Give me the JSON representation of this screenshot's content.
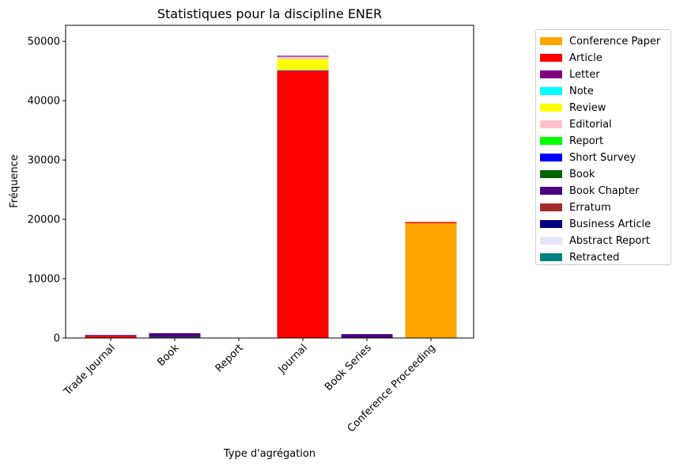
{
  "chart_data": {
    "type": "bar",
    "stacked": true,
    "title": "Statistiques pour la discipline ENER",
    "xlabel": "Type d'agrégation",
    "ylabel": "Fréquence",
    "categories": [
      "Trade Journal",
      "Book",
      "Report",
      "Journal",
      "Book Series",
      "Conference Proceeding"
    ],
    "ylim": [
      0,
      52700
    ],
    "yticks": [
      0,
      10000,
      20000,
      30000,
      40000,
      50000
    ],
    "grid": false,
    "legend_position": "outside-right",
    "series": [
      {
        "name": "Conference Paper",
        "color": "#ffa500",
        "values": [
          0,
          0,
          0,
          50,
          0,
          19350
        ]
      },
      {
        "name": "Article",
        "color": "#ff0000",
        "values": [
          350,
          0,
          0,
          45000,
          0,
          200
        ]
      },
      {
        "name": "Letter",
        "color": "#800080",
        "values": [
          0,
          0,
          0,
          100,
          0,
          0
        ]
      },
      {
        "name": "Note",
        "color": "#00ffff",
        "values": [
          0,
          0,
          0,
          50,
          0,
          0
        ]
      },
      {
        "name": "Review",
        "color": "#ffff00",
        "values": [
          0,
          0,
          0,
          1800,
          0,
          0
        ]
      },
      {
        "name": "Editorial",
        "color": "#ffc0cb",
        "values": [
          0,
          0,
          0,
          500,
          0,
          0
        ]
      },
      {
        "name": "Report",
        "color": "#00ff00",
        "values": [
          0,
          0,
          0,
          0,
          0,
          0
        ]
      },
      {
        "name": "Short Survey",
        "color": "#0000ff",
        "values": [
          0,
          0,
          0,
          0,
          0,
          0
        ]
      },
      {
        "name": "Book",
        "color": "#006400",
        "values": [
          0,
          150,
          0,
          0,
          0,
          0
        ]
      },
      {
        "name": "Book Chapter",
        "color": "#4b0082",
        "values": [
          150,
          650,
          0,
          0,
          650,
          0
        ]
      },
      {
        "name": "Erratum",
        "color": "#a52a2a",
        "values": [
          0,
          0,
          0,
          60,
          0,
          0
        ]
      },
      {
        "name": "Business Article",
        "color": "#000080",
        "values": [
          0,
          0,
          0,
          0,
          0,
          0
        ]
      },
      {
        "name": "Abstract Report",
        "color": "#e6e6fa",
        "values": [
          0,
          0,
          0,
          0,
          0,
          0
        ]
      },
      {
        "name": "Retracted",
        "color": "#008080",
        "values": [
          0,
          0,
          0,
          0,
          0,
          0
        ]
      }
    ],
    "overlay_lines": [
      {
        "category": "Journal",
        "value": 47500,
        "color": "#4b0082"
      }
    ]
  }
}
